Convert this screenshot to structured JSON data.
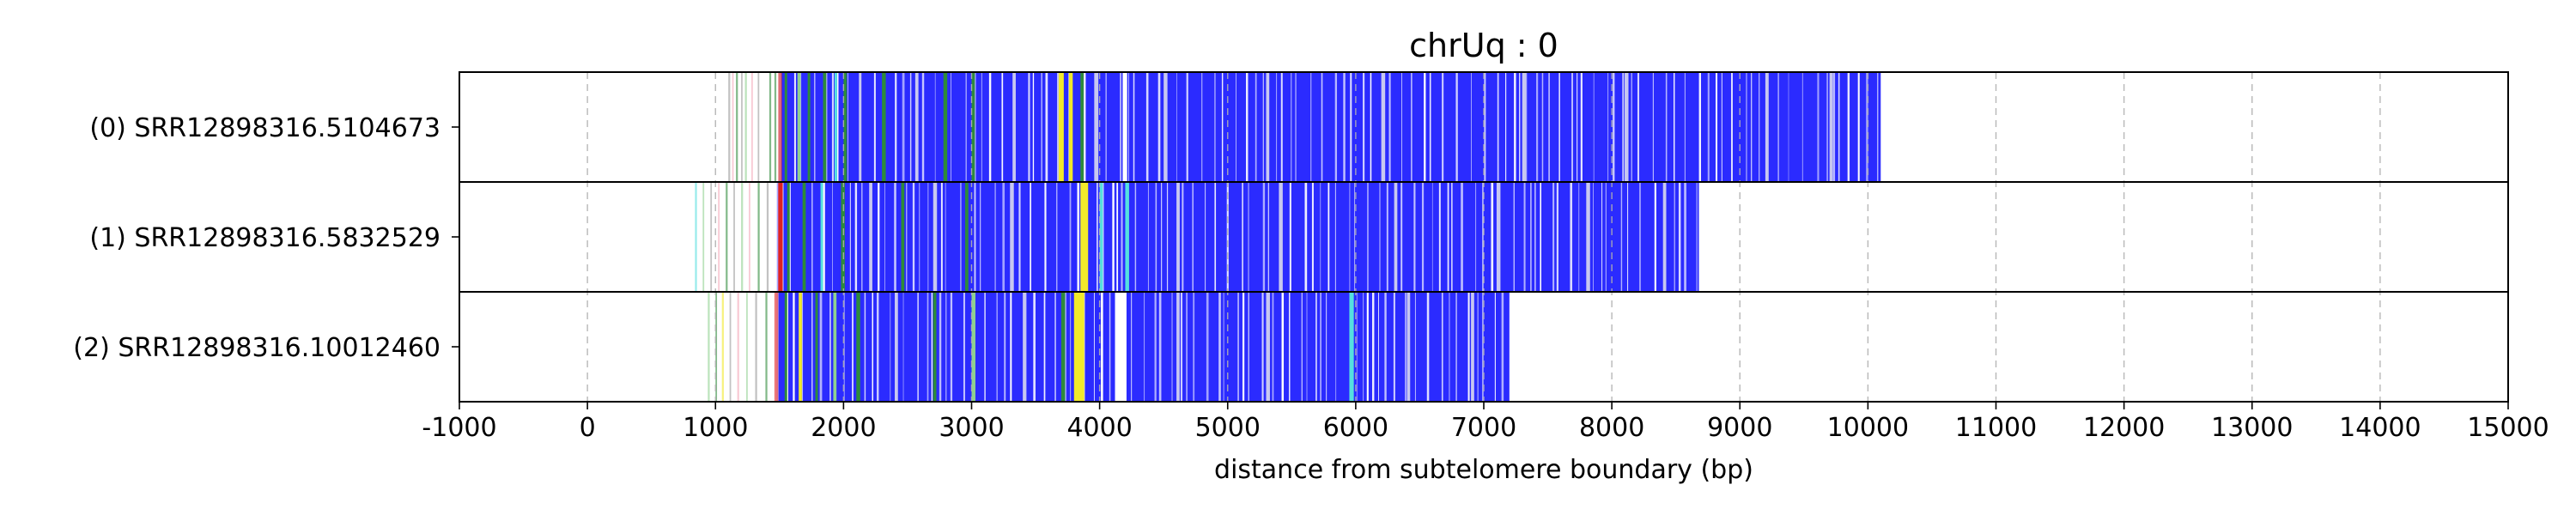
{
  "chart_data": {
    "type": "heatmap",
    "title": "chrUq : 0",
    "xlabel": "distance from subtelomere boundary (bp)",
    "ylabel": "",
    "xlim": [
      -1000,
      15000
    ],
    "x_ticks": [
      -1000,
      0,
      1000,
      2000,
      3000,
      4000,
      5000,
      6000,
      7000,
      8000,
      9000,
      10000,
      11000,
      12000,
      13000,
      14000,
      15000
    ],
    "x_tick_labels": [
      "-1000",
      "0",
      "1000",
      "2000",
      "3000",
      "4000",
      "5000",
      "6000",
      "7000",
      "8000",
      "9000",
      "10000",
      "11000",
      "12000",
      "13000",
      "14000",
      "15000"
    ],
    "grid": "vertical dashed at x ticks",
    "colors": {
      "telomere": "#2b2bff",
      "gap": "#ffffff",
      "variant_green": "#2e8b3a",
      "variant_lightgreen": "#8fd18f",
      "variant_cyan": "#55e0e0",
      "variant_yellow": "#f2ea2a",
      "variant_red": "#e02020",
      "variant_pink": "#f4a6b8",
      "variant_grey": "#9a9a9a",
      "variant_lavender": "#c8c8f0"
    },
    "series": [
      {
        "name": "(0) SRR12898316.5104673",
        "start": 1000,
        "end": 10100,
        "dense_start": 1500,
        "segments": [
          {
            "x": 1100,
            "w": 15,
            "color": "variant_grey"
          },
          {
            "x": 1130,
            "w": 12,
            "color": "variant_pink"
          },
          {
            "x": 1160,
            "w": 15,
            "color": "variant_green"
          },
          {
            "x": 1200,
            "w": 12,
            "color": "variant_grey"
          },
          {
            "x": 1230,
            "w": 15,
            "color": "variant_lightgreen"
          },
          {
            "x": 1280,
            "w": 12,
            "color": "variant_pink"
          },
          {
            "x": 1330,
            "w": 12,
            "color": "variant_grey"
          },
          {
            "x": 1420,
            "w": 15,
            "color": "variant_green"
          },
          {
            "x": 1460,
            "w": 15,
            "color": "variant_green"
          },
          {
            "x": 1490,
            "w": 30,
            "color": "variant_red"
          },
          {
            "x": 1540,
            "w": 20,
            "color": "variant_green"
          },
          {
            "x": 1640,
            "w": 25,
            "color": "variant_lightgreen"
          },
          {
            "x": 1720,
            "w": 20,
            "color": "variant_green"
          },
          {
            "x": 1840,
            "w": 25,
            "color": "variant_green"
          },
          {
            "x": 1930,
            "w": 20,
            "color": "variant_cyan"
          },
          {
            "x": 2000,
            "w": 25,
            "color": "variant_green"
          },
          {
            "x": 2120,
            "w": 20,
            "color": "variant_lavender"
          },
          {
            "x": 2300,
            "w": 30,
            "color": "variant_green"
          },
          {
            "x": 2560,
            "w": 25,
            "color": "variant_lavender"
          },
          {
            "x": 2780,
            "w": 30,
            "color": "variant_green"
          },
          {
            "x": 3000,
            "w": 25,
            "color": "variant_green"
          },
          {
            "x": 3320,
            "w": 25,
            "color": "variant_lavender"
          },
          {
            "x": 3680,
            "w": 40,
            "color": "variant_yellow"
          },
          {
            "x": 3760,
            "w": 30,
            "color": "variant_yellow"
          },
          {
            "x": 3850,
            "w": 25,
            "color": "variant_green"
          },
          {
            "x": 3960,
            "w": 30,
            "color": "variant_lavender"
          },
          {
            "x": 4180,
            "w": 35,
            "color": "gap"
          },
          {
            "x": 4500,
            "w": 25,
            "color": "variant_lavender"
          },
          {
            "x": 5300,
            "w": 25,
            "color": "variant_lavender"
          },
          {
            "x": 6200,
            "w": 30,
            "color": "variant_lavender"
          },
          {
            "x": 7300,
            "w": 30,
            "color": "variant_lavender"
          },
          {
            "x": 8100,
            "w": 30,
            "color": "variant_lavender"
          },
          {
            "x": 9200,
            "w": 25,
            "color": "variant_lavender"
          },
          {
            "x": 9700,
            "w": 25,
            "color": "variant_lavender"
          }
        ]
      },
      {
        "name": "(1) SRR12898316.5832529",
        "start": 820,
        "end": 8680,
        "dense_start": 1480,
        "segments": [
          {
            "x": 840,
            "w": 15,
            "color": "variant_cyan"
          },
          {
            "x": 900,
            "w": 12,
            "color": "variant_lightgreen"
          },
          {
            "x": 960,
            "w": 12,
            "color": "variant_grey"
          },
          {
            "x": 1020,
            "w": 12,
            "color": "variant_pink"
          },
          {
            "x": 1080,
            "w": 15,
            "color": "variant_green"
          },
          {
            "x": 1140,
            "w": 12,
            "color": "variant_grey"
          },
          {
            "x": 1200,
            "w": 15,
            "color": "variant_lightgreen"
          },
          {
            "x": 1260,
            "w": 12,
            "color": "variant_pink"
          },
          {
            "x": 1330,
            "w": 15,
            "color": "variant_green"
          },
          {
            "x": 1400,
            "w": 15,
            "color": "variant_grey"
          },
          {
            "x": 1490,
            "w": 35,
            "color": "variant_red"
          },
          {
            "x": 1560,
            "w": 20,
            "color": "variant_green"
          },
          {
            "x": 1680,
            "w": 25,
            "color": "variant_green"
          },
          {
            "x": 1820,
            "w": 20,
            "color": "variant_cyan"
          },
          {
            "x": 1980,
            "w": 30,
            "color": "variant_green"
          },
          {
            "x": 2200,
            "w": 25,
            "color": "variant_lavender"
          },
          {
            "x": 2450,
            "w": 25,
            "color": "variant_green"
          },
          {
            "x": 2700,
            "w": 30,
            "color": "variant_lavender"
          },
          {
            "x": 2950,
            "w": 25,
            "color": "variant_green"
          },
          {
            "x": 3300,
            "w": 30,
            "color": "variant_lavender"
          },
          {
            "x": 3850,
            "w": 60,
            "color": "variant_yellow"
          },
          {
            "x": 4000,
            "w": 25,
            "color": "variant_cyan"
          },
          {
            "x": 4200,
            "w": 30,
            "color": "variant_cyan"
          },
          {
            "x": 4600,
            "w": 25,
            "color": "variant_lavender"
          },
          {
            "x": 5400,
            "w": 30,
            "color": "variant_lavender"
          },
          {
            "x": 6300,
            "w": 25,
            "color": "variant_lavender"
          },
          {
            "x": 7100,
            "w": 30,
            "color": "variant_lavender"
          },
          {
            "x": 7800,
            "w": 30,
            "color": "variant_lavender"
          },
          {
            "x": 8400,
            "w": 25,
            "color": "variant_lavender"
          }
        ]
      },
      {
        "name": "(2) SRR12898316.10012460",
        "start": 920,
        "end": 7200,
        "dense_start": 1480,
        "segments": [
          {
            "x": 940,
            "w": 15,
            "color": "variant_lightgreen"
          },
          {
            "x": 1000,
            "w": 12,
            "color": "variant_green"
          },
          {
            "x": 1050,
            "w": 15,
            "color": "variant_yellow"
          },
          {
            "x": 1110,
            "w": 12,
            "color": "variant_grey"
          },
          {
            "x": 1170,
            "w": 15,
            "color": "variant_pink"
          },
          {
            "x": 1240,
            "w": 12,
            "color": "variant_lightgreen"
          },
          {
            "x": 1310,
            "w": 15,
            "color": "variant_grey"
          },
          {
            "x": 1390,
            "w": 15,
            "color": "variant_green"
          },
          {
            "x": 1460,
            "w": 30,
            "color": "variant_red"
          },
          {
            "x": 1540,
            "w": 20,
            "color": "variant_green"
          },
          {
            "x": 1650,
            "w": 25,
            "color": "variant_yellow"
          },
          {
            "x": 1780,
            "w": 20,
            "color": "variant_green"
          },
          {
            "x": 1920,
            "w": 25,
            "color": "variant_lightgreen"
          },
          {
            "x": 2100,
            "w": 30,
            "color": "variant_green"
          },
          {
            "x": 2400,
            "w": 25,
            "color": "variant_lavender"
          },
          {
            "x": 2700,
            "w": 25,
            "color": "variant_green"
          },
          {
            "x": 3000,
            "w": 30,
            "color": "variant_lightgreen"
          },
          {
            "x": 3400,
            "w": 25,
            "color": "variant_lavender"
          },
          {
            "x": 3700,
            "w": 30,
            "color": "variant_green"
          },
          {
            "x": 3800,
            "w": 80,
            "color": "variant_yellow"
          },
          {
            "x": 4120,
            "w": 90,
            "color": "gap"
          },
          {
            "x": 4600,
            "w": 25,
            "color": "variant_lavender"
          },
          {
            "x": 5300,
            "w": 30,
            "color": "variant_lavender"
          },
          {
            "x": 5950,
            "w": 35,
            "color": "variant_cyan"
          },
          {
            "x": 6400,
            "w": 25,
            "color": "variant_lavender"
          },
          {
            "x": 6900,
            "w": 25,
            "color": "variant_lavender"
          }
        ]
      }
    ]
  }
}
